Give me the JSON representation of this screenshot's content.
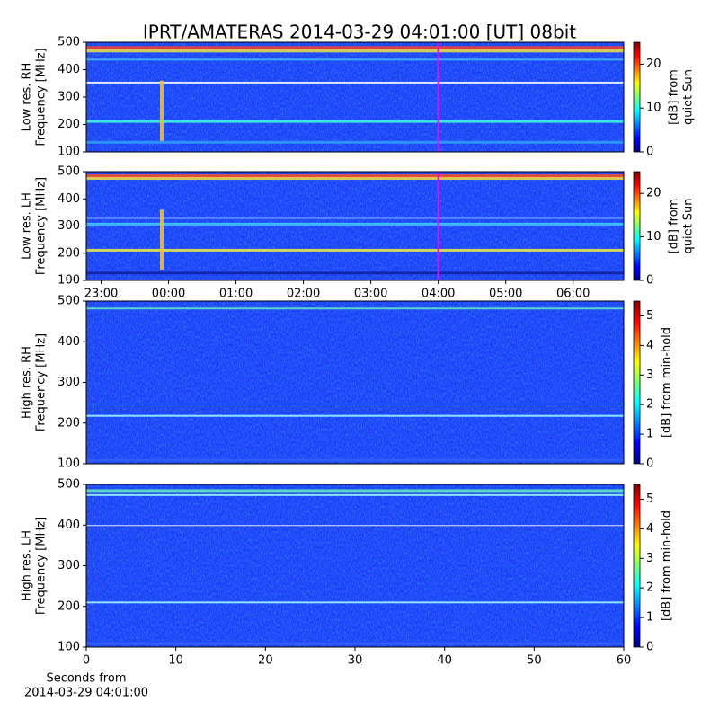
{
  "chart_data": [
    {
      "type": "heatmap",
      "title": "IPRT/AMATERAS 2014-03-29 04:01:00 [UT]   08bit",
      "ylabel": [
        "Low res. RH",
        "Frequency [MHz]"
      ],
      "ylim": [
        100,
        500
      ],
      "yticks": [
        100,
        200,
        300,
        400,
        500
      ],
      "xlim": [
        -1.22,
        6.75
      ],
      "marker_x": 4,
      "marker_color": "#ff00ff",
      "clim": [
        0,
        25
      ],
      "cticks": [
        0,
        10,
        20
      ],
      "clabel": [
        "[dB] from",
        "quiet Sun"
      ]
    },
    {
      "type": "heatmap",
      "ylabel": [
        "Low res. LH",
        "Frequency [MHz]"
      ],
      "ylim": [
        100,
        500
      ],
      "yticks": [
        100,
        200,
        300,
        400,
        500
      ],
      "xlim": [
        -1.22,
        6.75
      ],
      "xticks": [
        {
          "value": -1,
          "label": "23:00"
        },
        {
          "value": 0,
          "label": "00:00"
        },
        {
          "value": 1,
          "label": "01:00"
        },
        {
          "value": 2,
          "label": "02:00"
        },
        {
          "value": 3,
          "label": "03:00"
        },
        {
          "value": 4,
          "label": "04:00"
        },
        {
          "value": 5,
          "label": "05:00"
        },
        {
          "value": 6,
          "label": "06:00"
        }
      ],
      "marker_x": 4,
      "marker_color": "#ff00ff",
      "clim": [
        0,
        25
      ],
      "cticks": [
        0,
        10,
        20
      ],
      "clabel": [
        "[dB] from",
        "quiet Sun"
      ]
    },
    {
      "type": "heatmap",
      "ylabel": [
        "High res. RH",
        "Frequency [MHz]"
      ],
      "ylim": [
        100,
        500
      ],
      "yticks": [
        100,
        200,
        300,
        400,
        500
      ],
      "clim": [
        0,
        5.5
      ],
      "cticks": [
        0,
        1,
        2,
        3,
        4,
        5
      ],
      "clabel": [
        "[dB] from min-hold"
      ]
    },
    {
      "type": "heatmap",
      "ylabel": [
        "High res. LH",
        "Frequency [MHz]"
      ],
      "ylim": [
        100,
        500
      ],
      "yticks": [
        100,
        200,
        300,
        400,
        500
      ],
      "xlim": [
        0,
        60
      ],
      "xticks": [
        0,
        10,
        20,
        30,
        40,
        50,
        60
      ],
      "xlabel": [
        "Seconds from",
        "2014-03-29 04:01:00"
      ],
      "clim": [
        0,
        5.5
      ],
      "cticks": [
        0,
        1,
        2,
        3,
        4,
        5
      ],
      "clabel": [
        "[dB] from min-hold"
      ]
    }
  ]
}
